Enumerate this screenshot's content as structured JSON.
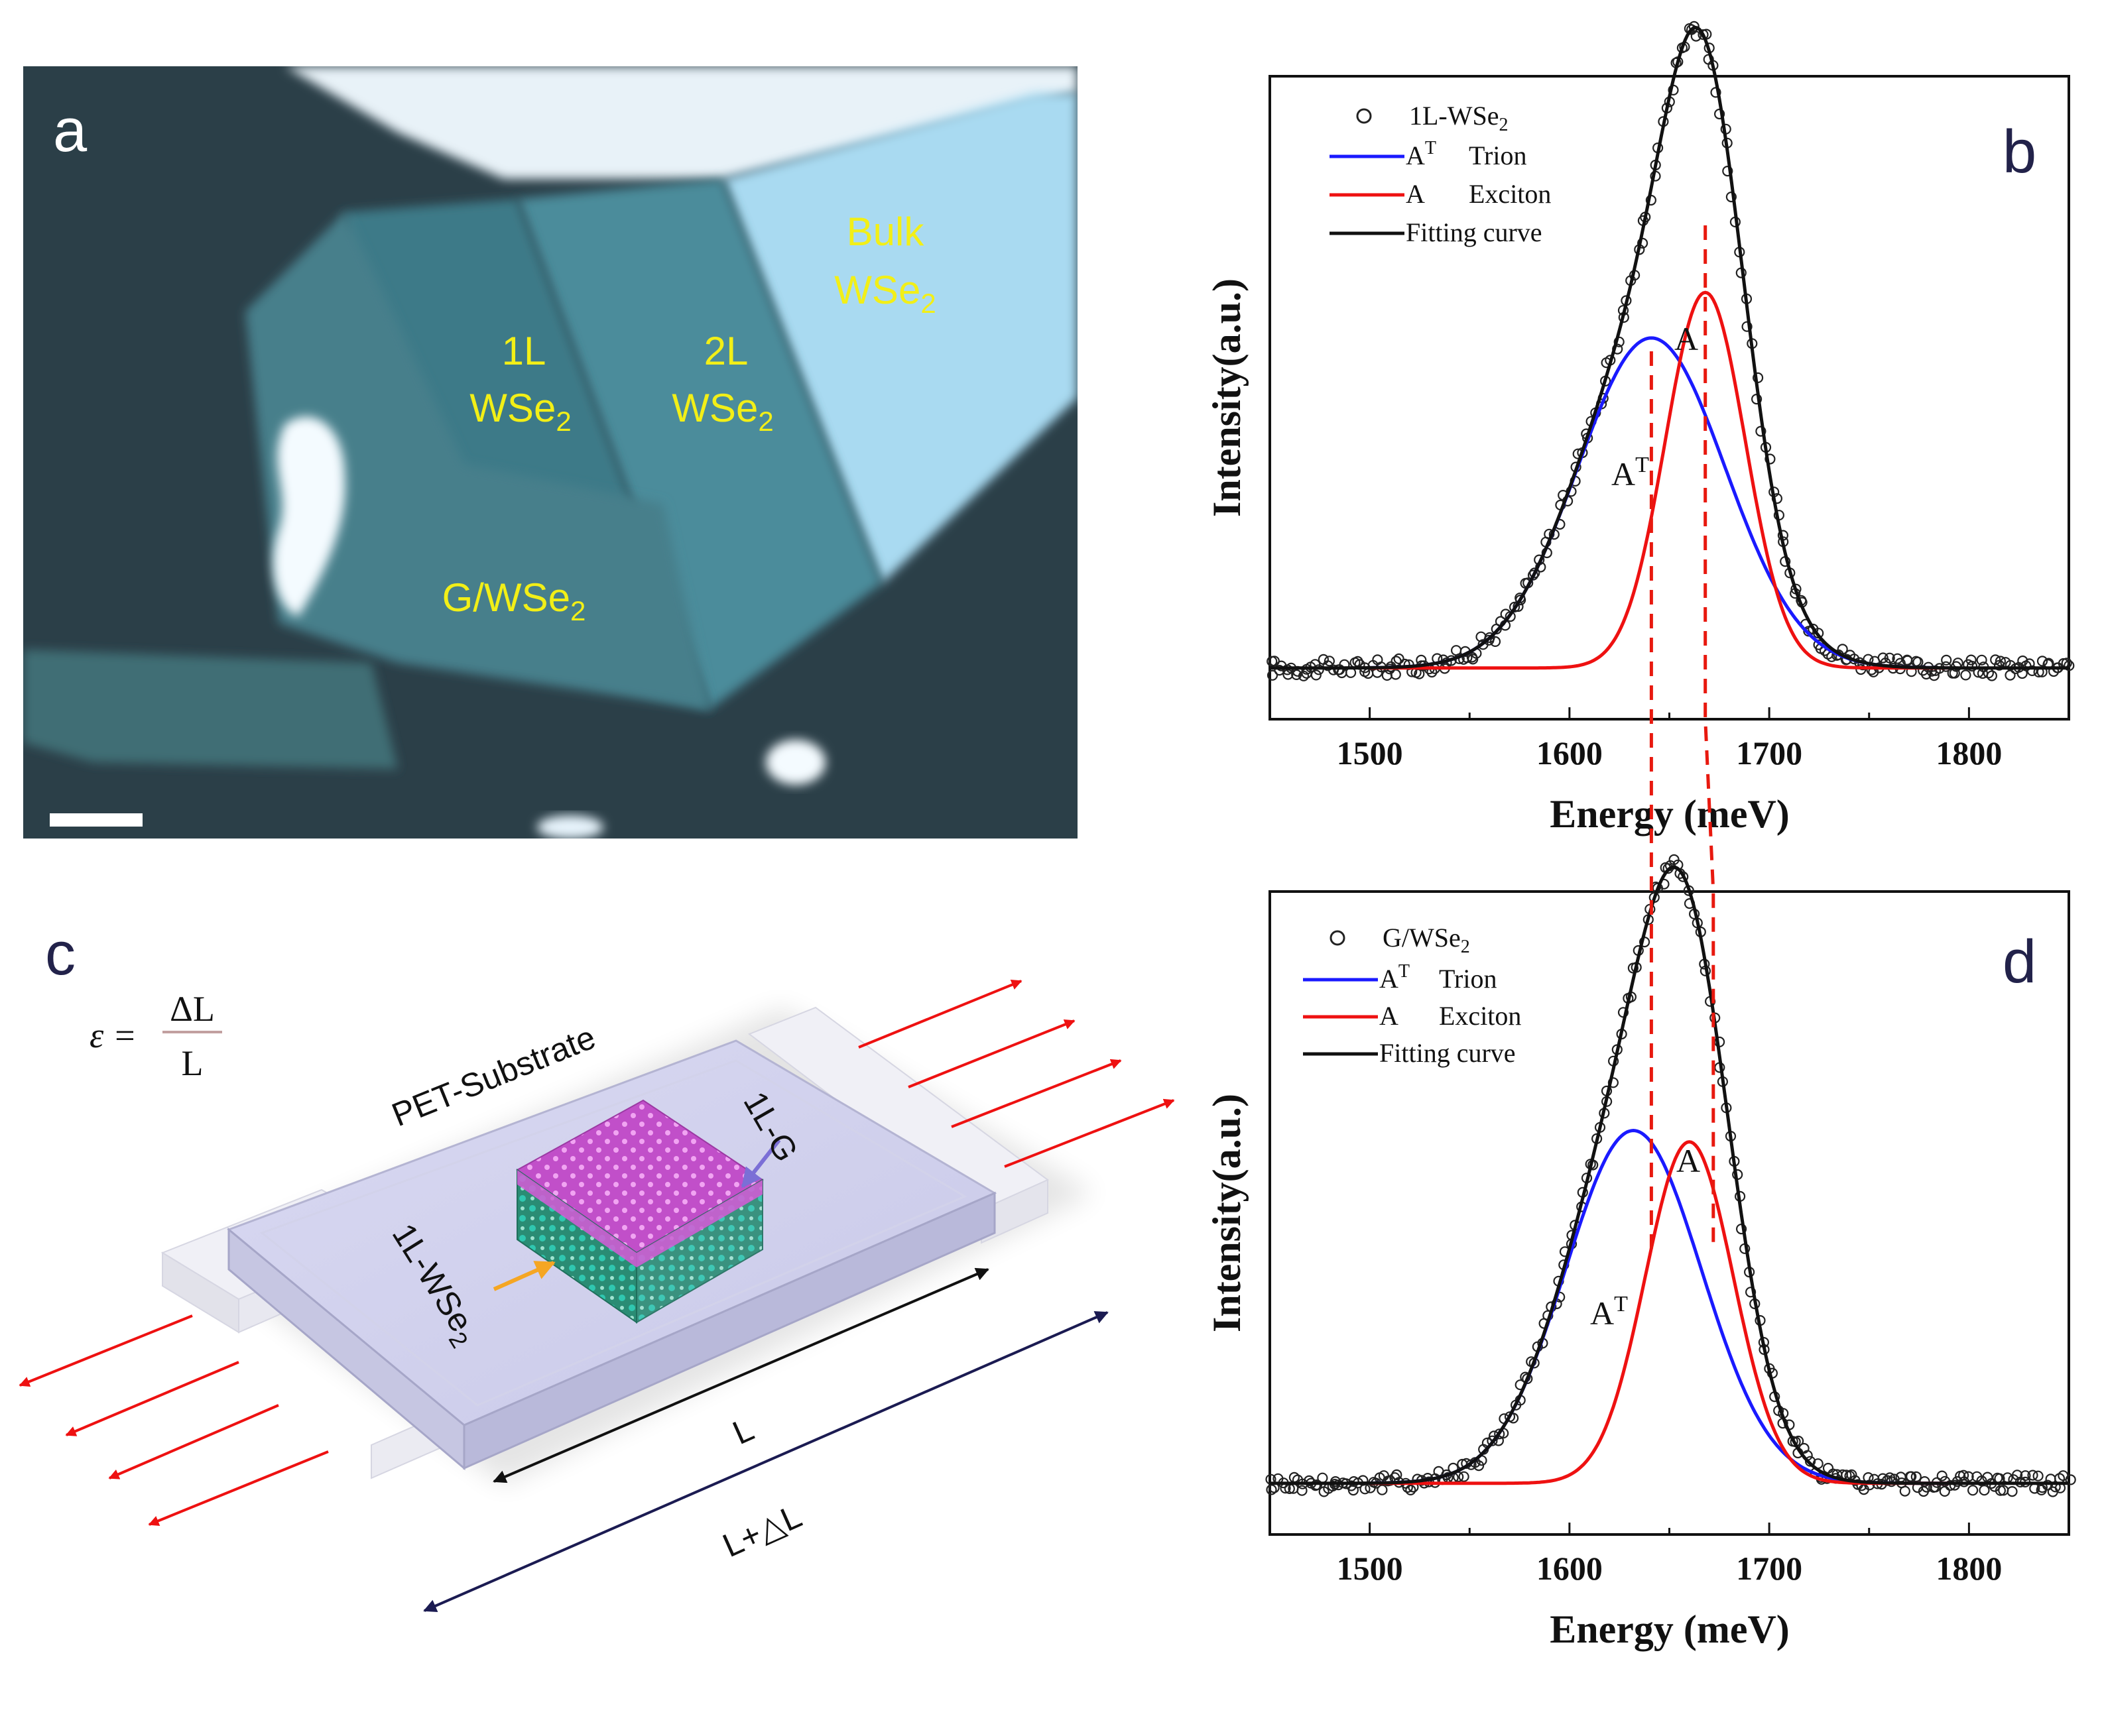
{
  "panel_a": {
    "letter": "a",
    "labels": {
      "bulk_1": "Bulk",
      "bulk_2": "WSe",
      "bulk_sub": "2",
      "l1_1": "1L",
      "l1_2": "WSe",
      "l1_sub": "2",
      "l2_1": "2L",
      "l2_2": "WSe",
      "l2_sub": "2",
      "g_1": "G/WSe",
      "g_sub": "2"
    }
  },
  "panel_c": {
    "letter": "c",
    "formula_eps": "ε =",
    "formula_num": "ΔL",
    "formula_den": "L",
    "substrate_label": "PET-Substrate",
    "graphene_label": "1L-G",
    "wse2_label": "1L-WSe",
    "wse2_sub": "2",
    "length_label": "L",
    "stretched_label": "L+△L"
  },
  "colors": {
    "trion": "#1a1aff",
    "exciton": "#ee1111",
    "fit": "#111111",
    "data": "#222222",
    "guide": "#e8190f",
    "flake_yellow": "#f2ef17"
  },
  "chart_data": [
    {
      "id": "b",
      "type": "scatter",
      "panel_letter": "b",
      "xlabel": "Energy (meV)",
      "ylabel": "Intensity(a.u.)",
      "xlim": [
        1450,
        1850
      ],
      "ylim": [
        -0.08,
        1.05
      ],
      "xticks": [
        1500,
        1600,
        1700,
        1800
      ],
      "legend": {
        "data": "1L-WSe",
        "data_sub": "2",
        "trion_main": "A",
        "trion_sup": "T",
        "trion_name": "Trion",
        "exciton_main": "A",
        "exciton_name": "Exciton",
        "fit": "Fitting curve"
      },
      "peak_labels": {
        "trion_main": "A",
        "trion_sup": "T",
        "exciton": "A"
      },
      "baseline": 0.01,
      "trion": {
        "center": 1641,
        "amplitude": 0.58,
        "sigma": 37
      },
      "exciton": {
        "center": 1668,
        "amplitude": 0.66,
        "sigma": 20
      },
      "guide_lines": [
        1641,
        1668
      ]
    },
    {
      "id": "d",
      "type": "scatter",
      "panel_letter": "d",
      "xlabel": "Energy (meV)",
      "ylabel": "Intensity(a.u.)",
      "xlim": [
        1450,
        1850
      ],
      "ylim": [
        -0.08,
        1.05
      ],
      "xticks": [
        1500,
        1600,
        1700,
        1800
      ],
      "legend": {
        "data": "G/WSe",
        "data_sub": "2",
        "trion_main": "A",
        "trion_sup": "T",
        "trion_name": "Trion",
        "exciton_main": "A",
        "exciton_name": "Exciton",
        "fit": "Fitting curve"
      },
      "peak_labels": {
        "trion_main": "A",
        "trion_sup": "T",
        "exciton": "A"
      },
      "baseline": 0.01,
      "trion": {
        "center": 1632,
        "amplitude": 0.62,
        "sigma": 34
      },
      "exciton": {
        "center": 1660,
        "amplitude": 0.6,
        "sigma": 22
      },
      "guide_lines": [
        1641,
        1672
      ]
    }
  ]
}
